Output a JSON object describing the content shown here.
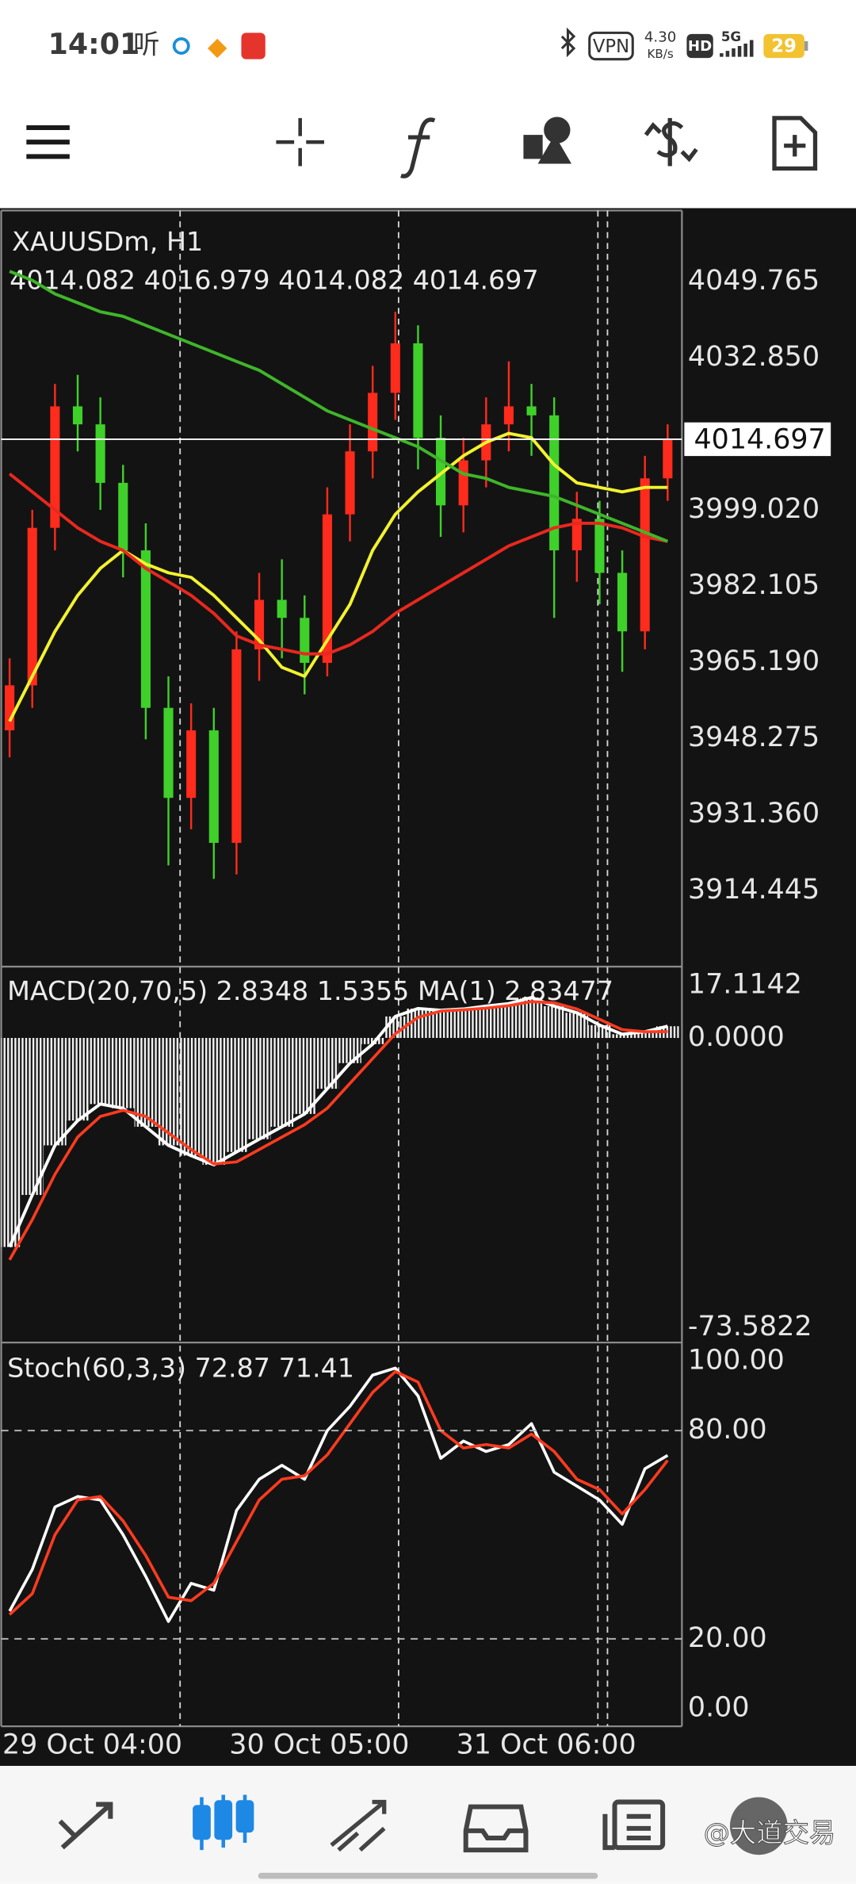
{
  "status_bar": {
    "time": "14:01",
    "listen": "听",
    "vpn": "VPN",
    "speed": "4.30",
    "speed_unit": "KB/s",
    "hd": "HD",
    "network": "5G",
    "battery": "29"
  },
  "chart_data": [
    {
      "type": "candlestick",
      "title": "XAUUSDm, H1",
      "subtitle": "4014.082 4016.979 4014.082 4014.697",
      "categories": [
        "29 Oct 04:00",
        null,
        null,
        null,
        null,
        null,
        null,
        null,
        null,
        null,
        "30 Oct 05:00",
        null,
        null,
        null,
        null,
        null,
        null,
        null,
        null,
        null,
        "31 Oct 06:00",
        null,
        null,
        null,
        null,
        null,
        null,
        null,
        null,
        null
      ],
      "open": [
        3950,
        3960,
        3995,
        4022,
        4018,
        4005,
        3990,
        3955,
        3935,
        3950,
        3925,
        3968,
        3979,
        3975,
        3965,
        3998,
        4012,
        4025,
        4036,
        4015,
        4000,
        4010,
        4018,
        4022,
        4020,
        3990,
        3997,
        3985,
        3972,
        4006
      ],
      "high": [
        3966,
        3999,
        4027,
        4029,
        4024,
        4009,
        3996,
        3962,
        3956,
        3955,
        3972,
        3985,
        3988,
        3980,
        4004,
        4018,
        4031,
        4043,
        4040,
        4020,
        4015,
        4024,
        4032,
        4027,
        4024,
        4003,
        4001,
        3990,
        4011,
        4018
      ],
      "low": [
        3944,
        3955,
        3990,
        4012,
        3999,
        3984,
        3948,
        3920,
        3928,
        3917,
        3918,
        3961,
        3966,
        3958,
        3962,
        3992,
        4006,
        4019,
        4008,
        3993,
        3994,
        4004,
        4012,
        4011,
        3975,
        3983,
        3978,
        3963,
        3968,
        4001
      ],
      "close": [
        3960,
        3995,
        4022,
        4018,
        4005,
        3990,
        3955,
        3935,
        3950,
        3925,
        3968,
        3979,
        3975,
        3965,
        3998,
        4012,
        4025,
        4036,
        4015,
        4000,
        4010,
        4018,
        4022,
        4020,
        3990,
        3997,
        3985,
        3972,
        4006,
        4014.697
      ],
      "up_color": "#ff2b1c",
      "down_color": "#3fd02a",
      "series": [
        {
          "color": "#f2f230",
          "values": [
            3952,
            3962,
            3972,
            3980,
            3986,
            3990,
            3987,
            3985,
            3984,
            3980,
            3975,
            3970,
            3964,
            3962,
            3970,
            3978,
            3990,
            3998,
            4003,
            4007,
            4011,
            4014,
            4016,
            4015,
            4009,
            4005,
            4004,
            4003,
            4004,
            4004
          ]
        },
        {
          "color": "#e8281e",
          "values": [
            4007,
            4003,
            3999,
            3995,
            3992,
            3990,
            3986,
            3983,
            3980,
            3976,
            3971,
            3969,
            3968,
            3967,
            3967,
            3969,
            3972,
            3976,
            3979,
            3982,
            3985,
            3988,
            3991,
            3993,
            3995,
            3996,
            3996,
            3995,
            3993,
            3992
          ]
        },
        {
          "color": "#3fb52a",
          "values": [
            4052,
            4050,
            4047,
            4045,
            4043,
            4042,
            4040,
            4038,
            4036,
            4034,
            4032,
            4030,
            4027,
            4024,
            4021,
            4019,
            4017,
            4015,
            4013,
            4010,
            4007,
            4006,
            4004,
            4003,
            4002,
            4000,
            3998,
            3996,
            3994,
            3992
          ]
        }
      ],
      "ylim": [
        3897.63,
        4065.51
      ],
      "yticks": [
        4049.765,
        {
          "value": 4032.85,
          "label": "4032.850"
        },
        {
          "value": 3999.02,
          "label": "3999.020"
        },
        3982.105,
        {
          "value": 3965.19,
          "label": "3965.190"
        },
        3948.275,
        {
          "value": 3931.36,
          "label": "3931.360"
        },
        3914.445
      ]
    },
    {
      "type": "macd",
      "title": "MACD(20,70,5) 2.8348 1.5355 MA(1) 2.83477",
      "series": [
        {
          "color": "#ffffff",
          "values": [
            -50.6,
            -38,
            -26,
            -20,
            -16,
            -17,
            -21.5,
            -26,
            -28.5,
            -30.7,
            -27.6,
            -24.5,
            -21.5,
            -18.4,
            -12.3,
            -6.1,
            -1.5,
            5.2,
            7.1,
            6.7,
            7,
            7.7,
            8.3,
            9.8,
            7.7,
            6.1,
            3.1,
            0.9,
            1.5,
            2.8348
          ]
        },
        {
          "color": "#ff3b1f",
          "values": [
            -53.7,
            -44,
            -33,
            -24,
            -19,
            -17.5,
            -19,
            -23,
            -27,
            -30.5,
            -30,
            -27,
            -24,
            -21,
            -17,
            -11,
            -5,
            1,
            5,
            6.5,
            6.8,
            7.2,
            7.8,
            8.8,
            8.5,
            7,
            4.5,
            2,
            1.5,
            1.5355
          ]
        }
      ],
      "ylim": [
        -73.5822,
        17.1142
      ],
      "yticks": [
        {
          "value": 17.1142,
          "label": "17.1142"
        },
        {
          "value": 0,
          "label": "0.0000"
        },
        {
          "value": -73.5822,
          "label": "-73.5822"
        }
      ]
    },
    {
      "type": "line",
      "title": "Stoch(60,3,3) 72.87 71.41",
      "series": [
        {
          "color": "#ffffff",
          "values": [
            28,
            40,
            58,
            61,
            60,
            50,
            38,
            25,
            36,
            34,
            57,
            66,
            70,
            66,
            80,
            87,
            96,
            98,
            90,
            72,
            77,
            74,
            76,
            82,
            68,
            64,
            60,
            53,
            69,
            72.87
          ]
        },
        {
          "color": "#ff3b1f",
          "values": [
            27,
            33,
            50,
            60,
            61,
            54,
            44,
            32,
            31,
            36,
            48,
            60,
            66,
            67,
            73,
            82,
            91,
            97,
            94,
            80,
            75,
            76,
            75,
            79,
            74,
            66,
            63,
            56,
            63,
            71.41
          ]
        }
      ],
      "levels": [
        80,
        20
      ],
      "ylim": [
        -5.2,
        105.2
      ],
      "yticks": [
        {
          "value": 100,
          "label": "100.00"
        },
        {
          "value": 80,
          "label": "80.00"
        },
        {
          "value": 20,
          "label": "20.00"
        },
        {
          "value": 0,
          "label": "0.00"
        }
      ]
    }
  ],
  "watermark": "@大道交易"
}
